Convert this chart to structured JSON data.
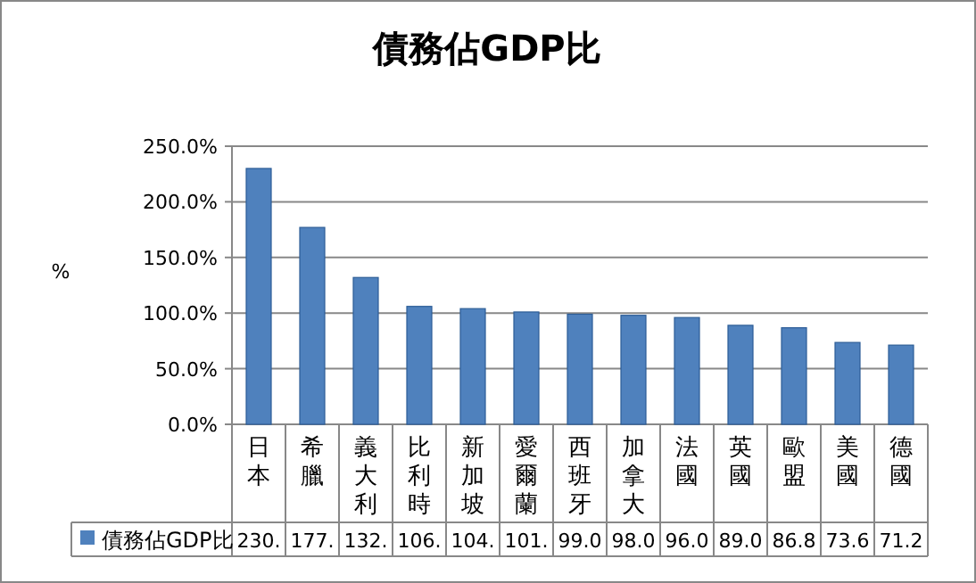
{
  "chart_data": {
    "type": "bar",
    "title": "債務佔GDP比",
    "ylabel": "%",
    "categories": [
      "日本",
      "希臘",
      "義大利",
      "比利時",
      "新加坡",
      "愛爾蘭",
      "西班牙",
      "加拿大",
      "法國",
      "英國",
      "歐盟",
      "美國",
      "德國"
    ],
    "series": [
      {
        "name": "債務佔GDP比",
        "color": "#4f81bd",
        "values": [
          230,
          177,
          132,
          106,
          104,
          101,
          99.0,
          98.0,
          96.0,
          89.0,
          86.8,
          73.6,
          71.2
        ],
        "value_labels": [
          "230.",
          "177.",
          "132.",
          "106.",
          "104.",
          "101.",
          "99.0",
          "98.0",
          "96.0",
          "89.0",
          "86.8",
          "73.6",
          "71.2"
        ]
      }
    ],
    "ylim": [
      0,
      250
    ],
    "yticks": [
      {
        "value": 0,
        "label": "0.0%"
      },
      {
        "value": 50,
        "label": "50.0%"
      },
      {
        "value": 100,
        "label": "100.0%"
      },
      {
        "value": 150,
        "label": "150.0%"
      },
      {
        "value": 200,
        "label": "200.0%"
      },
      {
        "value": 250,
        "label": "250.0%"
      }
    ],
    "grid": "y",
    "legend": "bottom"
  }
}
